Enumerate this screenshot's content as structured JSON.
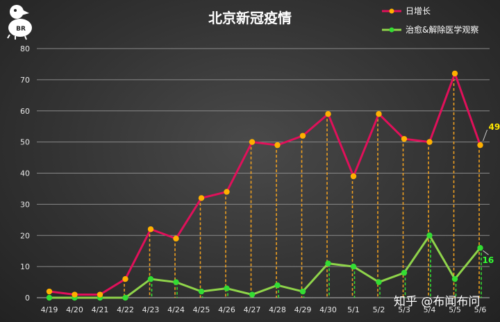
{
  "chart_data": {
    "type": "line",
    "title": "北京新冠疫情",
    "categories": [
      "4/19",
      "4/20",
      "4/21",
      "4/22",
      "4/23",
      "4/24",
      "4/25",
      "4/26",
      "4/27",
      "4/28",
      "4/29",
      "4/30",
      "5/1",
      "5/2",
      "5/3",
      "5/4",
      "5/5",
      "5/6"
    ],
    "series": [
      {
        "name": "日增长",
        "color": "#e0105a",
        "marker": "#ffb000",
        "values": [
          2,
          1,
          1,
          6,
          22,
          19,
          32,
          34,
          50,
          49,
          52,
          59,
          39,
          59,
          51,
          50,
          72,
          49
        ]
      },
      {
        "name": "治愈&解除医学观察",
        "color": "#8fd44a",
        "marker": "#33dd33",
        "values": [
          0,
          0,
          0,
          0,
          6,
          5,
          2,
          3,
          1,
          4,
          2,
          11,
          10,
          5,
          8,
          20,
          6,
          16
        ]
      }
    ],
    "ylim": [
      0,
      80
    ],
    "yticks": [
      0,
      10,
      20,
      30,
      40,
      50,
      60,
      70,
      80
    ],
    "grid": true,
    "legend_position": "top-right",
    "data_labels": {
      "red_last": "49",
      "green_last": "16"
    }
  },
  "logo": {
    "text": "BR"
  },
  "watermark": "知乎 @布闻布问"
}
